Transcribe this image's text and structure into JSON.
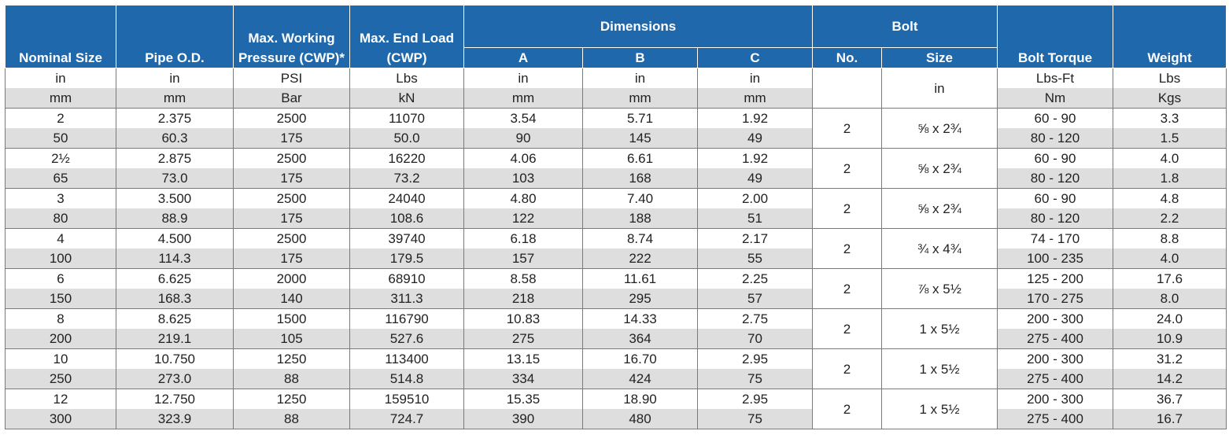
{
  "headers": {
    "nominal_size": "Nominal Size",
    "pipe_od": "Pipe O.D.",
    "max_working_pressure": "Max. Working Pressure (CWP)*",
    "max_end_load": "Max. End Load (CWP)",
    "dimensions": "Dimensions",
    "dim_a": "A",
    "dim_b": "B",
    "dim_c": "C",
    "bolt": "Bolt",
    "bolt_no": "No.",
    "bolt_size": "Size",
    "bolt_torque": "Bolt Torque",
    "weight": "Weight"
  },
  "units": {
    "imperial": [
      "in",
      "in",
      "PSI",
      "Lbs",
      "in",
      "in",
      "in",
      "Lbs-Ft",
      "Lbs"
    ],
    "metric": [
      "mm",
      "mm",
      "Bar",
      "kN",
      "mm",
      "mm",
      "mm",
      "Nm",
      "Kgs"
    ],
    "bolt_size_unit": "in"
  },
  "rows": [
    {
      "imperial": [
        "2",
        "2.375",
        "2500",
        "11070",
        "3.54",
        "5.71",
        "1.92",
        "60 - 90",
        "3.3"
      ],
      "metric": [
        "50",
        "60.3",
        "175",
        "50.0",
        "90",
        "145",
        "49",
        "80 - 120",
        "1.5"
      ],
      "bolt_no": "2",
      "bolt_size": "⅝ x 2¾"
    },
    {
      "imperial": [
        "2½",
        "2.875",
        "2500",
        "16220",
        "4.06",
        "6.61",
        "1.92",
        "60 - 90",
        "4.0"
      ],
      "metric": [
        "65",
        "73.0",
        "175",
        "73.2",
        "103",
        "168",
        "49",
        "80 - 120",
        "1.8"
      ],
      "bolt_no": "2",
      "bolt_size": "⅝ x 2¾"
    },
    {
      "imperial": [
        "3",
        "3.500",
        "2500",
        "24040",
        "4.80",
        "7.40",
        "2.00",
        "60 - 90",
        "4.8"
      ],
      "metric": [
        "80",
        "88.9",
        "175",
        "108.6",
        "122",
        "188",
        "51",
        "80 - 120",
        "2.2"
      ],
      "bolt_no": "2",
      "bolt_size": "⅝ x 2¾"
    },
    {
      "imperial": [
        "4",
        "4.500",
        "2500",
        "39740",
        "6.18",
        "8.74",
        "2.17",
        "74 - 170",
        "8.8"
      ],
      "metric": [
        "100",
        "114.3",
        "175",
        "179.5",
        "157",
        "222",
        "55",
        "100 - 235",
        "4.0"
      ],
      "bolt_no": "2",
      "bolt_size": "¾ x 4¾"
    },
    {
      "imperial": [
        "6",
        "6.625",
        "2000",
        "68910",
        "8.58",
        "11.61",
        "2.25",
        "125 - 200",
        "17.6"
      ],
      "metric": [
        "150",
        "168.3",
        "140",
        "311.3",
        "218",
        "295",
        "57",
        "170 - 275",
        "8.0"
      ],
      "bolt_no": "2",
      "bolt_size": "⅞ x 5½"
    },
    {
      "imperial": [
        "8",
        "8.625",
        "1500",
        "116790",
        "10.83",
        "14.33",
        "2.75",
        "200 - 300",
        "24.0"
      ],
      "metric": [
        "200",
        "219.1",
        "105",
        "527.6",
        "275",
        "364",
        "70",
        "275 - 400",
        "10.9"
      ],
      "bolt_no": "2",
      "bolt_size": "1 x 5½"
    },
    {
      "imperial": [
        "10",
        "10.750",
        "1250",
        "113400",
        "13.15",
        "16.70",
        "2.95",
        "200 - 300",
        "31.2"
      ],
      "metric": [
        "250",
        "273.0",
        "88",
        "514.8",
        "334",
        "424",
        "75",
        "275 - 400",
        "14.2"
      ],
      "bolt_no": "2",
      "bolt_size": "1 x 5½"
    },
    {
      "imperial": [
        "12",
        "12.750",
        "1250",
        "159510",
        "15.35",
        "18.90",
        "2.95",
        "200 - 300",
        "36.7"
      ],
      "metric": [
        "300",
        "323.9",
        "88",
        "724.7",
        "390",
        "480",
        "75",
        "275 - 400",
        "16.7"
      ],
      "bolt_no": "2",
      "bolt_size": "1 x 5½"
    }
  ]
}
